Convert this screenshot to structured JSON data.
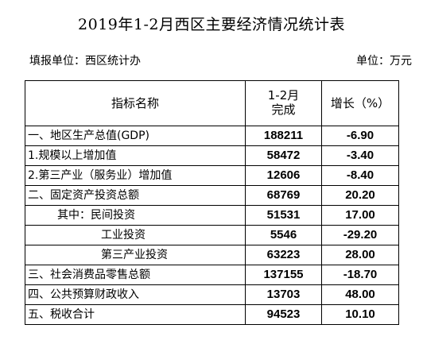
{
  "title": "2019年1-2月西区主要经济情况统计表",
  "reporting_unit": "填报单位：西区统计办",
  "unit": "单位：万元",
  "table": {
    "headers": {
      "indicator": "指标名称",
      "period_line1": "1-2月",
      "period_line2": "完成",
      "growth": "增长（%）"
    },
    "rows": [
      {
        "name": "一、地区生产总值(GDP)",
        "value": "188211",
        "growth": "-6.90",
        "indent": 0
      },
      {
        "name": "1.规模以上增加值",
        "value": "58472",
        "growth": "-3.40",
        "indent": 0
      },
      {
        "name": "2.第三产业（服务业）增加值",
        "value": "12606",
        "growth": "-8.40",
        "indent": 0
      },
      {
        "name": "二、固定资产投资总额",
        "value": "68769",
        "growth": "20.20",
        "indent": 0
      },
      {
        "name": "其中：民间投资",
        "value": "51531",
        "growth": "17.00",
        "indent": 1
      },
      {
        "name": "工业投资",
        "value": "5546",
        "growth": "-29.20",
        "indent": 2
      },
      {
        "name": "第三产业投资",
        "value": "63223",
        "growth": "28.00",
        "indent": 2
      },
      {
        "name": "三、社会消费品零售总额",
        "value": "137155",
        "growth": "-18.70",
        "indent": 0
      },
      {
        "name": "四、公共预算财政收入",
        "value": "13703",
        "growth": "48.00",
        "indent": 0
      },
      {
        "name": "五、税收合计",
        "value": "94523",
        "growth": "10.10",
        "indent": 0
      }
    ]
  }
}
